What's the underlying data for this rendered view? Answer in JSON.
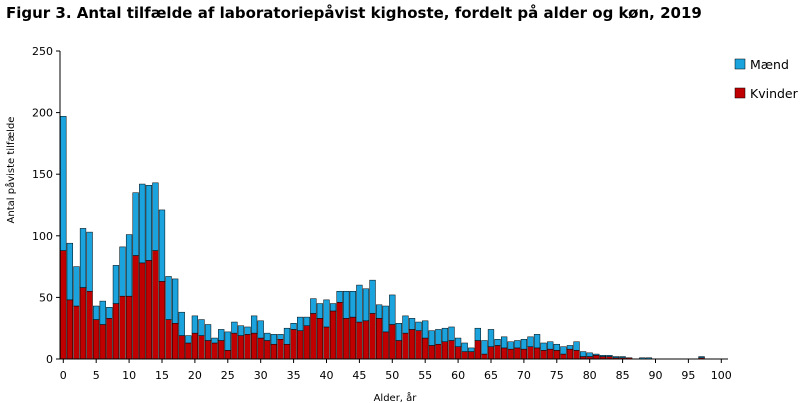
{
  "chart_data": {
    "type": "bar",
    "stacked": true,
    "title": "Figur 3. Antal tilfælde af laboratoriepåvist kighoste, fordelt på alder og køn, 2019",
    "xlabel": "Alder, år",
    "ylabel": "Antal påviste tilfælde",
    "ylim": [
      0,
      250
    ],
    "yticks": [
      0,
      50,
      100,
      150,
      200,
      250
    ],
    "xticks": [
      0,
      5,
      10,
      15,
      20,
      25,
      30,
      35,
      40,
      45,
      50,
      55,
      60,
      65,
      70,
      75,
      80,
      85,
      90,
      95,
      100
    ],
    "legend_position": "top-right",
    "categories": [
      0,
      1,
      2,
      3,
      4,
      5,
      6,
      7,
      8,
      9,
      10,
      11,
      12,
      13,
      14,
      15,
      16,
      17,
      18,
      19,
      20,
      21,
      22,
      23,
      24,
      25,
      26,
      27,
      28,
      29,
      30,
      31,
      32,
      33,
      34,
      35,
      36,
      37,
      38,
      39,
      40,
      41,
      42,
      43,
      44,
      45,
      46,
      47,
      48,
      49,
      50,
      51,
      52,
      53,
      54,
      55,
      56,
      57,
      58,
      59,
      60,
      61,
      62,
      63,
      64,
      65,
      66,
      67,
      68,
      69,
      70,
      71,
      72,
      73,
      74,
      75,
      76,
      77,
      78,
      79,
      80,
      81,
      82,
      83,
      84,
      85,
      86,
      87,
      88,
      89,
      90,
      91,
      92,
      93,
      94,
      95,
      96,
      97,
      98,
      99
    ],
    "series": [
      {
        "name": "Kvinder",
        "color": "#c00000",
        "values": [
          88,
          48,
          43,
          58,
          55,
          32,
          28,
          33,
          45,
          51,
          51,
          84,
          78,
          80,
          88,
          63,
          32,
          29,
          19,
          13,
          21,
          19,
          15,
          13,
          15,
          7,
          21,
          19,
          20,
          21,
          17,
          15,
          12,
          16,
          12,
          24,
          23,
          27,
          37,
          33,
          26,
          39,
          46,
          33,
          34,
          30,
          31,
          37,
          33,
          22,
          28,
          15,
          21,
          24,
          23,
          17,
          11,
          12,
          14,
          15,
          10,
          6,
          6,
          15,
          4,
          10,
          11,
          9,
          8,
          9,
          8,
          10,
          9,
          7,
          8,
          7,
          4,
          8,
          7,
          2,
          2,
          3,
          2,
          2,
          1,
          1,
          1,
          0,
          0,
          0,
          0,
          0,
          0,
          0,
          0,
          0,
          0,
          1,
          0,
          0
        ]
      },
      {
        "name": "Mænd",
        "color": "#1aa3dd",
        "values": [
          109,
          46,
          32,
          48,
          48,
          11,
          19,
          9,
          31,
          40,
          50,
          51,
          64,
          61,
          55,
          58,
          35,
          36,
          19,
          6,
          14,
          13,
          13,
          4,
          9,
          15,
          9,
          8,
          6,
          14,
          14,
          6,
          8,
          4,
          13,
          5,
          11,
          7,
          12,
          12,
          22,
          6,
          9,
          22,
          21,
          30,
          26,
          27,
          11,
          21,
          24,
          14,
          14,
          9,
          7,
          14,
          12,
          12,
          11,
          11,
          7,
          7,
          3,
          10,
          11,
          14,
          5,
          9,
          6,
          6,
          8,
          8,
          11,
          6,
          6,
          5,
          6,
          3,
          7,
          4,
          3,
          1,
          1,
          1,
          1,
          1,
          0,
          0,
          1,
          1,
          0,
          0,
          0,
          0,
          0,
          0,
          0,
          1,
          0,
          0
        ]
      }
    ]
  }
}
